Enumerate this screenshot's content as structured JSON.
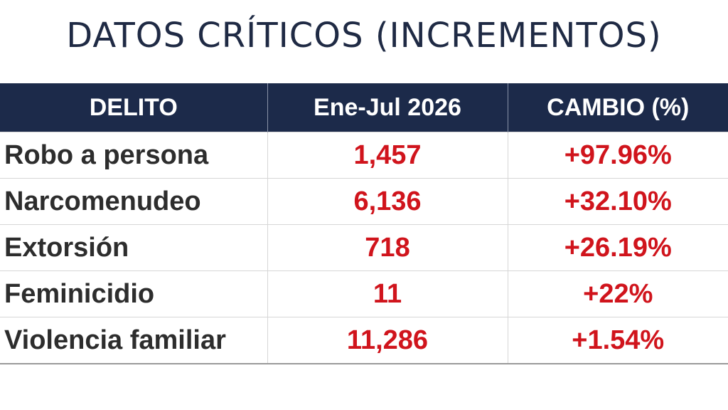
{
  "title": "DATOS CRÍTICOS (INCREMENTOS)",
  "table": {
    "headers": [
      "DELITO",
      "Ene-Jul 2026",
      "CAMBIO (%)"
    ],
    "rows": [
      {
        "crime": "Robo a persona",
        "count": "1,457",
        "change": "+97.96%"
      },
      {
        "crime": "Narcomenudeo",
        "count": "6,136",
        "change": "+32.10%"
      },
      {
        "crime": "Extorsión",
        "count": "718",
        "change": "+26.19%"
      },
      {
        "crime": "Feminicidio",
        "count": "11",
        "change": "+22%"
      },
      {
        "crime": "Violencia familiar",
        "count": "11,286",
        "change": "+1.54%"
      }
    ]
  },
  "colors": {
    "title": "#1f2a44",
    "header_bg": "#1c2a4a",
    "header_text": "#ffffff",
    "crime_text": "#2d2d2d",
    "value_text": "#d0141c"
  }
}
